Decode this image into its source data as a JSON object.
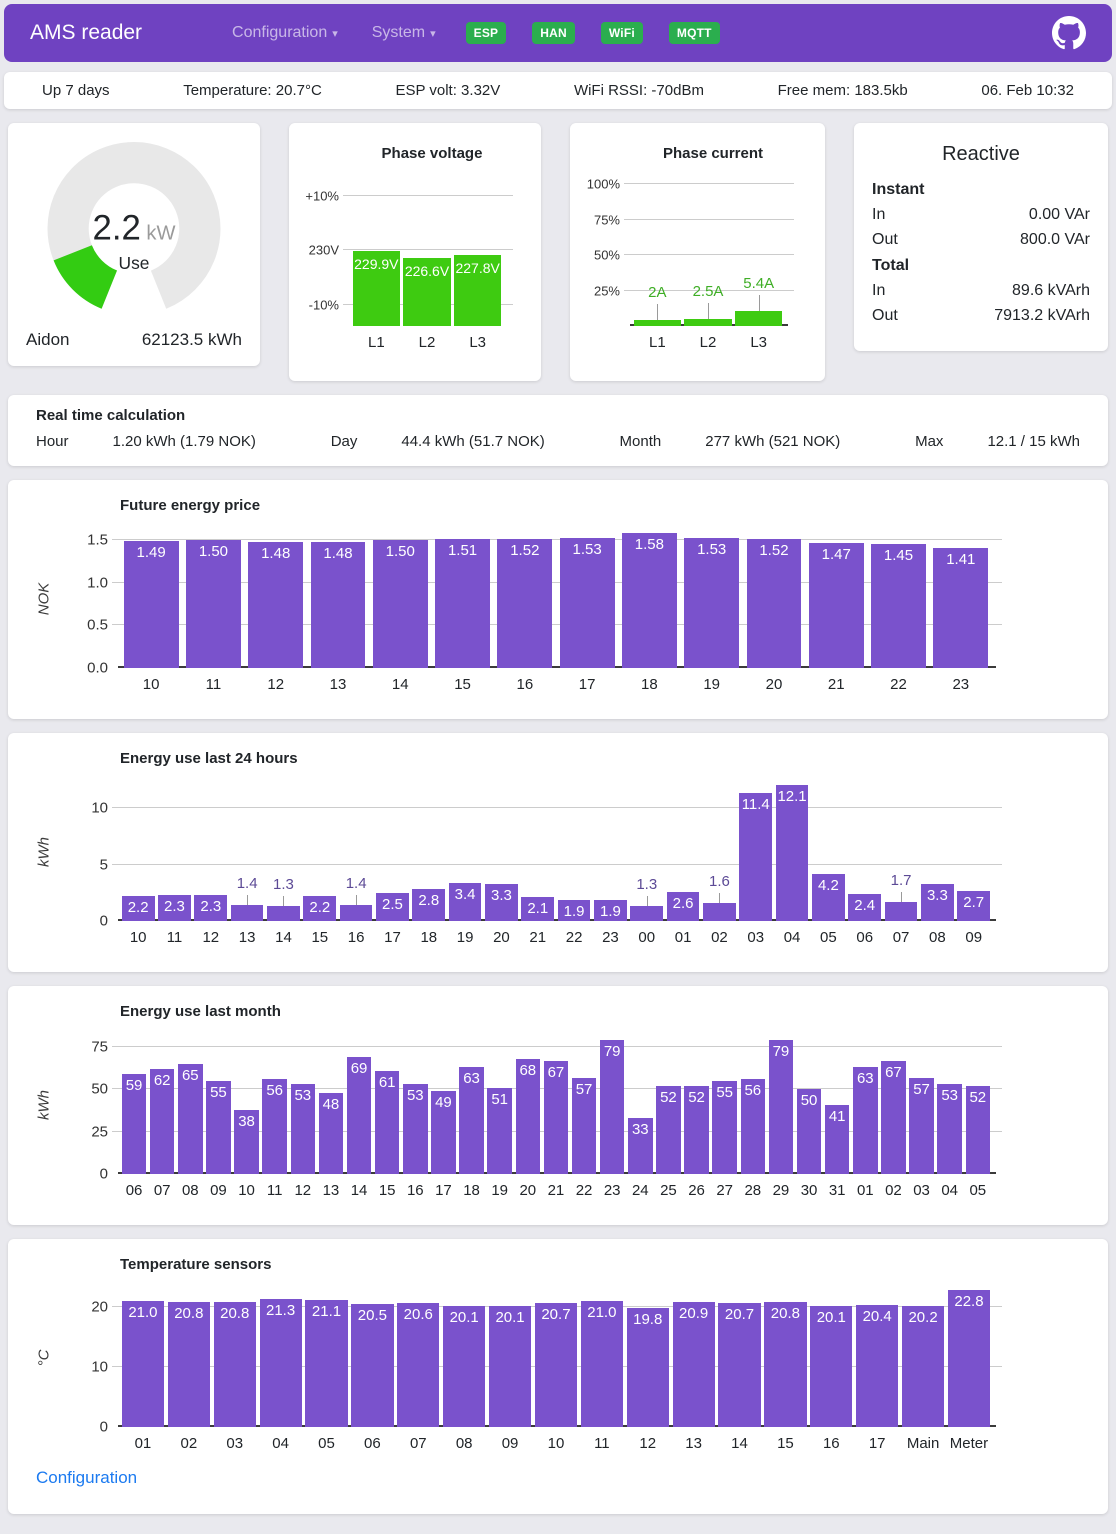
{
  "header": {
    "brand": "AMS reader",
    "nav": [
      {
        "id": "configuration",
        "label": "Configuration"
      },
      {
        "id": "system",
        "label": "System"
      }
    ],
    "badges": [
      "ESP",
      "HAN",
      "WiFi",
      "MQTT"
    ]
  },
  "statusbar": {
    "items": [
      {
        "id": "uptime",
        "text": "Up 7 days"
      },
      {
        "id": "temperature",
        "text": "Temperature: 20.7°C"
      },
      {
        "id": "esp-volt",
        "text": "ESP volt: 3.32V"
      },
      {
        "id": "wifi-rssi",
        "text": "WiFi RSSI: -70dBm"
      },
      {
        "id": "free-mem",
        "text": "Free mem: 183.5kb"
      },
      {
        "id": "datetime",
        "text": "06. Feb 10:32"
      }
    ]
  },
  "gauge": {
    "value": "2.2",
    "unit": "kW",
    "label": "Use",
    "meter_name": "Aidon",
    "total": "62123.5 kWh",
    "value_num": 2.2,
    "max": 15
  },
  "reactive": {
    "title": "Reactive",
    "sections": [
      {
        "title": "Instant",
        "rows": [
          {
            "label": "In",
            "value": "0.00 VAr"
          },
          {
            "label": "Out",
            "value": "800.0 VAr"
          }
        ]
      },
      {
        "title": "Total",
        "rows": [
          {
            "label": "In",
            "value": "89.6 kVArh"
          },
          {
            "label": "Out",
            "value": "7913.2 kVArh"
          }
        ]
      }
    ]
  },
  "realtime": {
    "title": "Real time calculation",
    "items": [
      {
        "label": "Hour",
        "value": "1.20 kWh (1.79 NOK)"
      },
      {
        "label": "Day",
        "value": "44.4 kWh (51.7 NOK)"
      },
      {
        "label": "Month",
        "value": "277 kWh (521 NOK)"
      },
      {
        "label": "Max",
        "value": "12.1 / 15 kWh"
      }
    ]
  },
  "footer": {
    "link": "Configuration"
  },
  "colors": {
    "header_purple": "#6f42c1",
    "badge_green": "#2bae4e",
    "bar_purple": "#7a52cc",
    "bar_green": "#3ecb11",
    "current_label_green": "#3fae26",
    "link_blue": "#1b7af0"
  },
  "chart_data": [
    {
      "id": "phase-voltage",
      "type": "bar",
      "title": "Phase voltage",
      "categories": [
        "L1",
        "L2",
        "L3"
      ],
      "values": [
        229.9,
        226.6,
        227.8
      ],
      "bar_labels": [
        "229.9V",
        "226.6V",
        "227.8V"
      ],
      "color": "#3ecb11",
      "ylim": [
        198,
        258
      ],
      "axis_line": false,
      "yticks": [
        {
          "v": 253,
          "t": "+10%"
        },
        {
          "v": 230,
          "t": "230V"
        },
        {
          "v": 207,
          "t": "-10%"
        }
      ]
    },
    {
      "id": "phase-current",
      "type": "bar",
      "title": "Phase current",
      "categories": [
        "L1",
        "L2",
        "L3"
      ],
      "values": [
        2,
        2.5,
        5.4
      ],
      "bar_labels": [
        "2A",
        "2.5A",
        "5.4A"
      ],
      "color": "#3ecb11",
      "ylim": [
        0,
        50
      ],
      "axis_line": true,
      "label_mode": "outside",
      "outside_color": "#3fae26",
      "yticks": [
        {
          "v": 50,
          "t": "100%"
        },
        {
          "v": 37.5,
          "t": "75%"
        },
        {
          "v": 25,
          "t": "50%"
        },
        {
          "v": 12.5,
          "t": "25%"
        }
      ]
    },
    {
      "id": "future-price",
      "type": "bar",
      "title": "Future energy price",
      "ylabel": "NOK",
      "categories": [
        "10",
        "11",
        "12",
        "13",
        "14",
        "15",
        "16",
        "17",
        "18",
        "19",
        "20",
        "21",
        "22",
        "23"
      ],
      "values": [
        1.49,
        1.5,
        1.48,
        1.48,
        1.5,
        1.51,
        1.52,
        1.53,
        1.58,
        1.53,
        1.52,
        1.47,
        1.45,
        1.41
      ],
      "bar_labels": [
        "1.49",
        "1.50",
        "1.48",
        "1.48",
        "1.50",
        "1.51",
        "1.52",
        "1.53",
        "1.58",
        "1.53",
        "1.52",
        "1.47",
        "1.45",
        "1.41"
      ],
      "color": "#7a52cc",
      "ylim": [
        0,
        1.62
      ],
      "axis_line": true,
      "yticks": [
        {
          "v": 0,
          "t": "0.0"
        },
        {
          "v": 0.5,
          "t": "0.5"
        },
        {
          "v": 1.0,
          "t": "1.0"
        },
        {
          "v": 1.5,
          "t": "1.5"
        }
      ]
    },
    {
      "id": "last24",
      "type": "bar",
      "title": "Energy use last 24 hours",
      "ylabel": "kWh",
      "categories": [
        "10",
        "11",
        "12",
        "13",
        "14",
        "15",
        "16",
        "17",
        "18",
        "19",
        "20",
        "21",
        "22",
        "23",
        "00",
        "01",
        "02",
        "03",
        "04",
        "05",
        "06",
        "07",
        "08",
        "09"
      ],
      "values": [
        2.2,
        2.3,
        2.3,
        1.4,
        1.3,
        2.2,
        1.4,
        2.5,
        2.8,
        3.4,
        3.3,
        2.1,
        1.9,
        1.9,
        1.3,
        2.6,
        1.6,
        11.4,
        12.1,
        4.2,
        2.4,
        1.7,
        3.3,
        2.7
      ],
      "bar_labels": [
        "2.2",
        "2.3",
        "2.3",
        "1.4",
        "1.3",
        "2.2",
        "1.4",
        "2.5",
        "2.8",
        "3.4",
        "3.3",
        "2.1",
        "1.9",
        "1.9",
        "1.3",
        "2.6",
        "1.6",
        "11.4",
        "12.1",
        "4.2",
        "2.4",
        "1.7",
        "3.3",
        "2.7"
      ],
      "color": "#7a52cc",
      "ylim": [
        0,
        12.25
      ],
      "axis_line": true,
      "outside_below": 1.8,
      "outside_color": "#5c4a96",
      "yticks": [
        {
          "v": 0,
          "t": "0"
        },
        {
          "v": 5,
          "t": "5"
        },
        {
          "v": 10,
          "t": "10"
        }
      ]
    },
    {
      "id": "month",
      "type": "bar",
      "title": "Energy use last month",
      "ylabel": "kWh",
      "categories": [
        "06",
        "07",
        "08",
        "09",
        "10",
        "11",
        "12",
        "13",
        "14",
        "15",
        "16",
        "17",
        "18",
        "19",
        "20",
        "21",
        "22",
        "23",
        "24",
        "25",
        "26",
        "27",
        "28",
        "29",
        "30",
        "31",
        "01",
        "02",
        "03",
        "04",
        "05"
      ],
      "values": [
        59,
        62,
        65,
        55,
        38,
        56,
        53,
        48,
        69,
        61,
        53,
        49,
        63,
        51,
        68,
        67,
        57,
        79,
        33,
        52,
        52,
        55,
        56,
        79,
        50,
        41,
        63,
        67,
        57,
        53,
        52
      ],
      "bar_labels": [
        "59",
        "62",
        "65",
        "55",
        "38",
        "56",
        "53",
        "48",
        "69",
        "61",
        "53",
        "49",
        "63",
        "51",
        "68",
        "67",
        "57",
        "79",
        "33",
        "52",
        "52",
        "55",
        "56",
        "79",
        "50",
        "41",
        "63",
        "67",
        "57",
        "53",
        "52"
      ],
      "color": "#7a52cc",
      "ylim": [
        0,
        81.5
      ],
      "axis_line": true,
      "yticks": [
        {
          "v": 0,
          "t": "0"
        },
        {
          "v": 25,
          "t": "25"
        },
        {
          "v": 50,
          "t": "50"
        },
        {
          "v": 75,
          "t": "75"
        }
      ]
    },
    {
      "id": "temps",
      "type": "bar",
      "title": "Temperature sensors",
      "ylabel": "°C",
      "categories": [
        "01",
        "02",
        "03",
        "04",
        "05",
        "06",
        "07",
        "08",
        "09",
        "10",
        "11",
        "12",
        "13",
        "14",
        "15",
        "16",
        "17",
        "Main",
        "Meter"
      ],
      "values": [
        21.0,
        20.8,
        20.8,
        21.3,
        21.1,
        20.5,
        20.6,
        20.1,
        20.1,
        20.7,
        21.0,
        19.8,
        20.9,
        20.7,
        20.8,
        20.1,
        20.4,
        20.2,
        22.8
      ],
      "bar_labels": [
        "21.0",
        "20.8",
        "20.8",
        "21.3",
        "21.1",
        "20.5",
        "20.6",
        "20.1",
        "20.1",
        "20.7",
        "21.0",
        "19.8",
        "20.9",
        "20.7",
        "20.8",
        "20.1",
        "20.4",
        "20.2",
        "22.8"
      ],
      "color": "#7a52cc",
      "ylim": [
        0,
        23
      ],
      "axis_line": true,
      "yticks": [
        {
          "v": 0,
          "t": "0"
        },
        {
          "v": 10,
          "t": "10"
        },
        {
          "v": 20,
          "t": "20"
        }
      ]
    }
  ]
}
